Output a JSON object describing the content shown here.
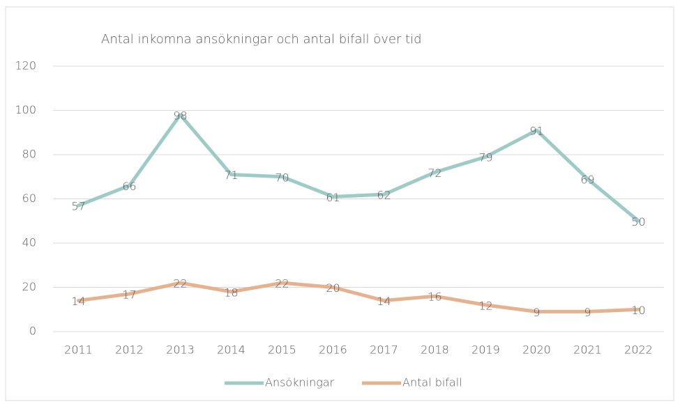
{
  "chart_data": {
    "type": "line",
    "title": "Antal inkomna ansökningar och antal bifall över tid",
    "categories": [
      "2011",
      "2012",
      "2013",
      "2014",
      "2015",
      "2016",
      "2017",
      "2018",
      "2019",
      "2020",
      "2021",
      "2022"
    ],
    "series": [
      {
        "name": "Ansökningar",
        "color": "#9fcbc6",
        "values": [
          57,
          66,
          98,
          71,
          70,
          61,
          62,
          72,
          79,
          91,
          69,
          50
        ]
      },
      {
        "name": "Antal bifall",
        "color": "#e5b290",
        "values": [
          14,
          17,
          22,
          18,
          22,
          20,
          14,
          16,
          12,
          9,
          9,
          10
        ]
      }
    ],
    "ylim": [
      0,
      120
    ],
    "yticks": [
      0,
      20,
      40,
      60,
      80,
      100,
      120
    ],
    "grid": true,
    "legend": "bottom"
  }
}
